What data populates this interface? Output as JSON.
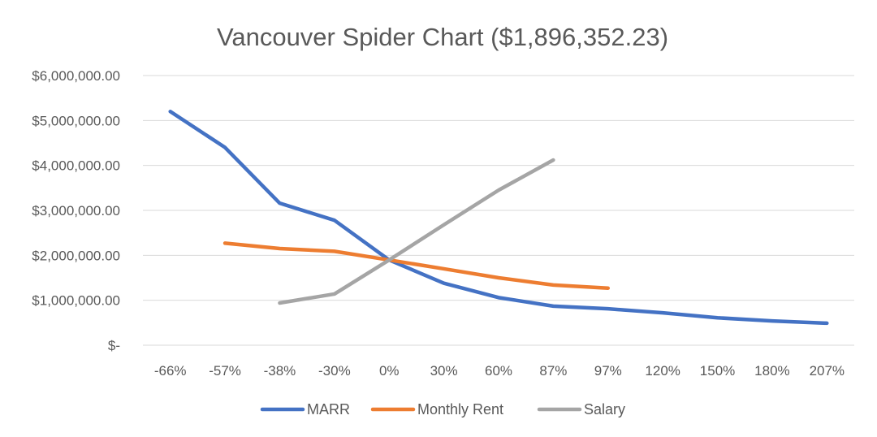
{
  "chart_data": {
    "type": "line",
    "title": "Vancouver Spider Chart ($1,896,352.23)",
    "categories": [
      "-66%",
      "-57%",
      "-38%",
      "-30%",
      "0%",
      "30%",
      "60%",
      "87%",
      "97%",
      "120%",
      "150%",
      "180%",
      "207%"
    ],
    "y_tick_labels": [
      "$-",
      "$1,000,000.00",
      "$2,000,000.00",
      "$3,000,000.00",
      "$4,000,000.00",
      "$5,000,000.00",
      "$6,000,000.00"
    ],
    "ylim": [
      0,
      6000000
    ],
    "grid": true,
    "legend_position": "bottom",
    "series": [
      {
        "name": "MARR",
        "color": "#4472C4",
        "values": [
          5200000,
          4400000,
          3160000,
          2780000,
          1896352.23,
          1380000,
          1060000,
          870000,
          810000,
          720000,
          610000,
          540000,
          490000
        ]
      },
      {
        "name": "Monthly Rent",
        "color": "#ED7D31",
        "values": [
          null,
          2270000,
          2150000,
          2090000,
          1896352.23,
          1700000,
          1500000,
          1340000,
          1270000,
          null,
          null,
          null,
          null
        ]
      },
      {
        "name": "Salary",
        "color": "#A5A5A5",
        "values": [
          null,
          null,
          940000,
          1140000,
          1896352.23,
          2680000,
          3450000,
          4120000,
          null,
          null,
          null,
          null,
          null
        ]
      }
    ]
  }
}
